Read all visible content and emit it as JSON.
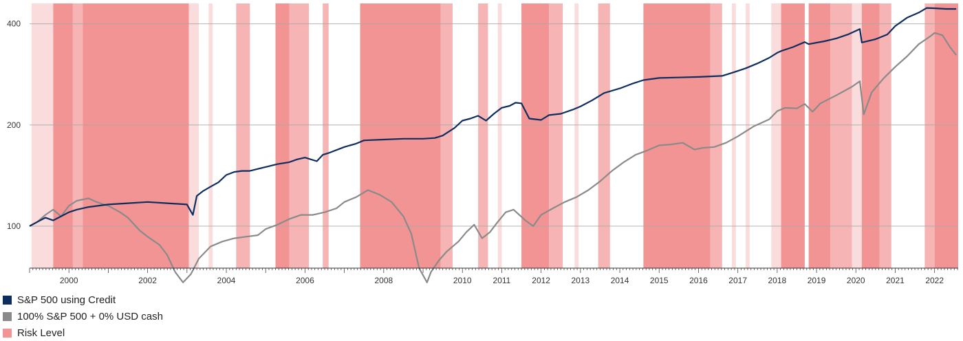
{
  "chart_data": {
    "type": "line",
    "title": "",
    "xlabel": "",
    "ylabel": "",
    "x_range": [
      1999.0,
      2022.6
    ],
    "ylim": [
      75,
      460
    ],
    "y_scale": "log",
    "grid": {
      "horizontal": true,
      "vertical": false
    },
    "legend_placement": "bottom-left",
    "y_ticks": [
      100,
      200,
      400
    ],
    "x_ticks": [
      {
        "value": 2000,
        "label": "2000"
      },
      {
        "value": 2002,
        "label": "2002"
      },
      {
        "value": 2004,
        "label": "2004"
      },
      {
        "value": 2006,
        "label": "2006"
      },
      {
        "value": 2008,
        "label": "2008"
      },
      {
        "value": 2010,
        "label": "2010"
      },
      {
        "value": 2011,
        "label": "2011"
      },
      {
        "value": 2012,
        "label": "2012"
      },
      {
        "value": 2013,
        "label": "2013"
      },
      {
        "value": 2014,
        "label": "2014"
      },
      {
        "value": 2015,
        "label": "2015"
      },
      {
        "value": 2016,
        "label": "2016"
      },
      {
        "value": 2017,
        "label": "2017"
      },
      {
        "value": 2018,
        "label": "2018"
      },
      {
        "value": 2019,
        "label": "2019"
      },
      {
        "value": 2020,
        "label": "2020"
      },
      {
        "value": 2021,
        "label": "2021"
      },
      {
        "value": 2022,
        "label": "2022"
      }
    ],
    "risk_periods": [
      {
        "start": 1999.05,
        "end": 1999.6,
        "level": "low"
      },
      {
        "start": 1999.6,
        "end": 2000.1,
        "level": "high"
      },
      {
        "start": 2000.1,
        "end": 2000.35,
        "level": "mid"
      },
      {
        "start": 2000.35,
        "end": 2003.05,
        "level": "high"
      },
      {
        "start": 2003.05,
        "end": 2003.3,
        "level": "low"
      },
      {
        "start": 2003.55,
        "end": 2003.65,
        "level": "low"
      },
      {
        "start": 2004.25,
        "end": 2004.6,
        "level": "mid"
      },
      {
        "start": 2005.25,
        "end": 2005.6,
        "level": "high"
      },
      {
        "start": 2005.6,
        "end": 2006.1,
        "level": "mid"
      },
      {
        "start": 2006.45,
        "end": 2006.6,
        "level": "mid"
      },
      {
        "start": 2007.4,
        "end": 2009.45,
        "level": "high"
      },
      {
        "start": 2009.45,
        "end": 2009.75,
        "level": "mid"
      },
      {
        "start": 2010.4,
        "end": 2010.65,
        "level": "mid"
      },
      {
        "start": 2010.9,
        "end": 2011.0,
        "level": "low"
      },
      {
        "start": 2011.5,
        "end": 2012.2,
        "level": "high"
      },
      {
        "start": 2012.2,
        "end": 2012.55,
        "level": "mid"
      },
      {
        "start": 2012.85,
        "end": 2012.95,
        "level": "low"
      },
      {
        "start": 2013.45,
        "end": 2013.75,
        "level": "mid"
      },
      {
        "start": 2014.6,
        "end": 2016.3,
        "level": "high"
      },
      {
        "start": 2016.3,
        "end": 2016.6,
        "level": "mid"
      },
      {
        "start": 2016.85,
        "end": 2016.95,
        "level": "low"
      },
      {
        "start": 2017.2,
        "end": 2017.3,
        "level": "low"
      },
      {
        "start": 2017.85,
        "end": 2018.1,
        "level": "low"
      },
      {
        "start": 2018.1,
        "end": 2018.7,
        "level": "high"
      },
      {
        "start": 2018.8,
        "end": 2019.35,
        "level": "high"
      },
      {
        "start": 2019.35,
        "end": 2019.9,
        "level": "mid"
      },
      {
        "start": 2019.9,
        "end": 2020.15,
        "level": "low"
      },
      {
        "start": 2020.15,
        "end": 2020.6,
        "level": "high"
      },
      {
        "start": 2020.6,
        "end": 2020.9,
        "level": "mid"
      },
      {
        "start": 2021.75,
        "end": 2022.0,
        "level": "mid"
      },
      {
        "start": 2022.0,
        "end": 2022.6,
        "level": "high"
      }
    ],
    "risk_colors": {
      "high": "#f29494",
      "mid": "#f6b4b4",
      "low": "#fbdcdc"
    },
    "series": [
      {
        "name": "S&P 500 using Credit",
        "color": "#0d2d5e",
        "x": [
          1999.0,
          1999.2,
          1999.4,
          1999.6,
          1999.8,
          2000.0,
          2000.2,
          2000.5,
          2001.0,
          2001.5,
          2002.0,
          2002.5,
          2003.0,
          2003.15,
          2003.25,
          2003.4,
          2003.6,
          2003.8,
          2004.0,
          2004.2,
          2004.4,
          2004.6,
          2004.8,
          2005.0,
          2005.3,
          2005.6,
          2005.8,
          2006.0,
          2006.3,
          2006.45,
          2006.6,
          2007.0,
          2007.3,
          2007.5,
          2008.0,
          2008.5,
          2009.0,
          2009.3,
          2009.5,
          2009.8,
          2010.0,
          2010.2,
          2010.4,
          2010.6,
          2010.8,
          2011.0,
          2011.2,
          2011.35,
          2011.5,
          2011.7,
          2012.0,
          2012.2,
          2012.5,
          2012.8,
          2013.0,
          2013.3,
          2013.6,
          2014.0,
          2014.3,
          2014.6,
          2015.0,
          2015.5,
          2016.0,
          2016.3,
          2016.6,
          2016.9,
          2017.2,
          2017.5,
          2017.8,
          2018.0,
          2018.1,
          2018.4,
          2018.7,
          2018.8,
          2019.2,
          2019.5,
          2019.8,
          2020.1,
          2020.15,
          2020.5,
          2020.8,
          2021.0,
          2021.3,
          2021.6,
          2021.8,
          2022.0,
          2022.3,
          2022.55
        ],
        "values": [
          100,
          103,
          106,
          104,
          107,
          110,
          112,
          114,
          116,
          117,
          118,
          117,
          116,
          108,
          123,
          127,
          131,
          135,
          142,
          145,
          146,
          146,
          148,
          150,
          153,
          155,
          158,
          160,
          156,
          163,
          165,
          172,
          176,
          180,
          181,
          182,
          182,
          183,
          186,
          196,
          206,
          209,
          213,
          206,
          216,
          225,
          228,
          233,
          232,
          209,
          207,
          214,
          216,
          222,
          227,
          237,
          249,
          257,
          265,
          272,
          276,
          277,
          278,
          279,
          280,
          287,
          295,
          305,
          317,
          328,
          332,
          341,
          353,
          348,
          355,
          362,
          372,
          386,
          352,
          360,
          372,
          394,
          417,
          432,
          446,
          445,
          443,
          443
        ]
      },
      {
        "name": "100% S&P 500 + 0% USD cash",
        "color": "#8a8a8a",
        "x": [
          1999.0,
          1999.2,
          1999.4,
          1999.6,
          1999.8,
          2000.0,
          2000.2,
          2000.5,
          2000.7,
          2001.0,
          2001.3,
          2001.5,
          2001.8,
          2002.0,
          2002.3,
          2002.5,
          2002.7,
          2002.9,
          2003.1,
          2003.3,
          2003.6,
          2003.9,
          2004.2,
          2004.5,
          2004.8,
          2005.0,
          2005.3,
          2005.6,
          2005.9,
          2006.2,
          2006.5,
          2006.8,
          2007.0,
          2007.3,
          2007.6,
          2007.9,
          2008.2,
          2008.5,
          2008.7,
          2008.9,
          2009.1,
          2009.2,
          2009.4,
          2009.6,
          2009.9,
          2010.1,
          2010.3,
          2010.5,
          2010.7,
          2010.9,
          2011.1,
          2011.3,
          2011.6,
          2011.8,
          2012.0,
          2012.3,
          2012.6,
          2012.9,
          2013.2,
          2013.5,
          2013.8,
          2014.1,
          2014.4,
          2014.7,
          2015.0,
          2015.3,
          2015.6,
          2015.9,
          2016.1,
          2016.4,
          2016.7,
          2017.0,
          2017.4,
          2017.8,
          2018.0,
          2018.2,
          2018.5,
          2018.7,
          2018.9,
          2019.1,
          2019.5,
          2019.9,
          2020.1,
          2020.2,
          2020.4,
          2020.7,
          2021.0,
          2021.3,
          2021.6,
          2021.9,
          2022.0,
          2022.2,
          2022.4,
          2022.55
        ],
        "values": [
          100,
          103,
          108,
          112,
          107,
          115,
          119,
          121,
          118,
          115,
          110,
          106,
          97,
          93,
          88,
          82,
          73,
          68,
          72,
          80,
          87,
          90,
          92,
          93,
          94,
          98,
          101,
          105,
          108,
          108,
          110,
          113,
          118,
          122,
          128,
          124,
          118,
          107,
          95,
          75,
          68,
          73,
          79,
          84,
          90,
          96,
          101,
          92,
          96,
          103,
          110,
          112,
          104,
          100,
          108,
          113,
          118,
          122,
          128,
          136,
          146,
          155,
          163,
          168,
          174,
          175,
          177,
          169,
          171,
          172,
          177,
          185,
          198,
          208,
          220,
          225,
          224,
          231,
          219,
          232,
          245,
          260,
          270,
          215,
          250,
          275,
          298,
          320,
          348,
          368,
          376,
          370,
          340,
          323
        ]
      }
    ]
  },
  "legend": {
    "items": [
      {
        "label": "S&P 500 using Credit",
        "color": "#0d2d5e"
      },
      {
        "label": "100% S&P 500 + 0% USD cash",
        "color": "#8a8a8a"
      },
      {
        "label": "Risk Level",
        "color": "#f29494"
      }
    ]
  }
}
